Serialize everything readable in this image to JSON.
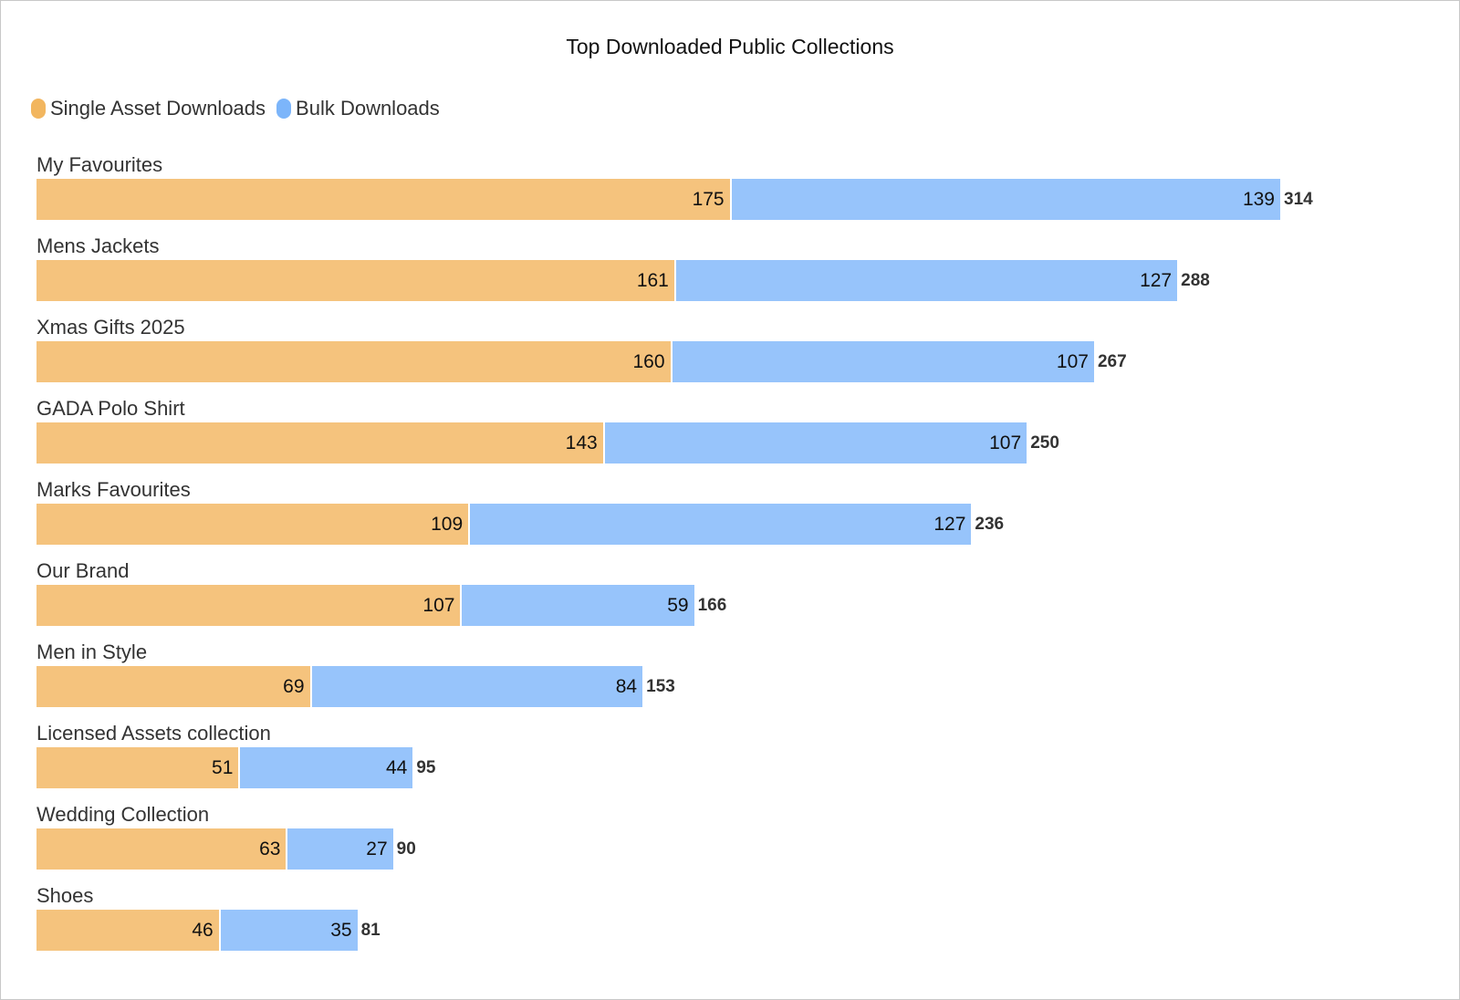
{
  "chart_data": {
    "type": "bar",
    "orientation": "horizontal",
    "stacked": true,
    "title": "Top Downloaded Public Collections",
    "legend_position": "top-left",
    "grid": false,
    "categories": [
      "My Favourites",
      "Mens Jackets",
      "Xmas Gifts 2025",
      "GADA Polo Shirt",
      "Marks Favourites",
      "Our Brand",
      "Men in Style",
      "Licensed Assets collection",
      "Wedding Collection",
      "Shoes"
    ],
    "series": [
      {
        "name": "Single Asset Downloads",
        "color": "#f5c37d",
        "legend_color": "#f2b65f",
        "values": [
          175,
          161,
          160,
          143,
          109,
          107,
          69,
          51,
          63,
          46
        ]
      },
      {
        "name": "Bulk Downloads",
        "color": "#97c4fb",
        "legend_color": "#7cb5fa",
        "values": [
          139,
          127,
          107,
          107,
          127,
          59,
          84,
          44,
          27,
          35
        ]
      }
    ],
    "totals": [
      314,
      288,
      267,
      250,
      236,
      166,
      153,
      95,
      90,
      81
    ],
    "xlim": [
      0,
      314
    ]
  }
}
